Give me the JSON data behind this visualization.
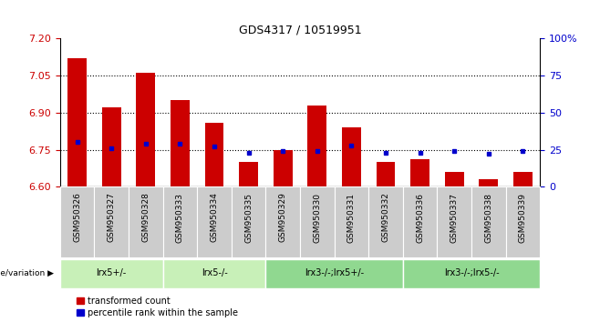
{
  "title": "GDS4317 / 10519951",
  "samples": [
    "GSM950326",
    "GSM950327",
    "GSM950328",
    "GSM950333",
    "GSM950334",
    "GSM950335",
    "GSM950329",
    "GSM950330",
    "GSM950331",
    "GSM950332",
    "GSM950336",
    "GSM950337",
    "GSM950338",
    "GSM950339"
  ],
  "red_values": [
    7.12,
    6.92,
    7.06,
    6.95,
    6.86,
    6.7,
    6.75,
    6.93,
    6.84,
    6.7,
    6.71,
    6.66,
    6.63,
    6.66
  ],
  "blue_values": [
    30,
    26,
    29,
    29,
    27,
    23,
    24,
    24,
    28,
    23,
    23,
    24,
    22,
    24
  ],
  "ylim_left": [
    6.6,
    7.2
  ],
  "ylim_right": [
    0,
    100
  ],
  "yticks_left": [
    6.6,
    6.75,
    6.9,
    7.05,
    7.2
  ],
  "yticks_right": [
    0,
    25,
    50,
    75,
    100
  ],
  "hlines": [
    6.75,
    6.9,
    7.05
  ],
  "groups": [
    {
      "label": "lrx5+/-",
      "start": 0,
      "end": 3,
      "color": "#c8f0b8"
    },
    {
      "label": "lrx5-/-",
      "start": 3,
      "end": 6,
      "color": "#c8f0b8"
    },
    {
      "label": "lrx3-/-;lrx5+/-",
      "start": 6,
      "end": 10,
      "color": "#90d890"
    },
    {
      "label": "lrx3-/-;lrx5-/-",
      "start": 10,
      "end": 14,
      "color": "#90d890"
    }
  ],
  "bar_color": "#cc0000",
  "dot_color": "#0000cc",
  "base_value": 6.6,
  "group_label_prefix": "genotype/variation",
  "legend_red": "transformed count",
  "legend_blue": "percentile rank within the sample",
  "left_axis_color": "#cc0000",
  "right_axis_color": "#0000cc",
  "sample_bg_color": "#cccccc",
  "plot_bg_color": "#ffffff"
}
